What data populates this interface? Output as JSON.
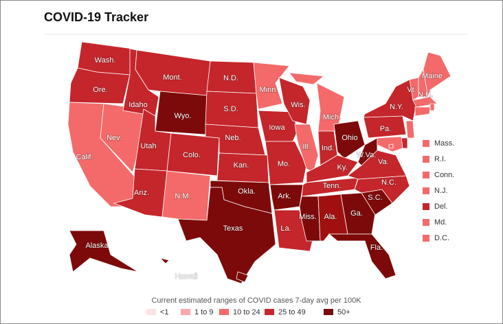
{
  "header": {
    "title": "COVID-19 Tracker"
  },
  "map": {
    "states": [
      {
        "label": "Wash.",
        "color": "#c4262b"
      },
      {
        "label": "Ore.",
        "color": "#c4262b"
      },
      {
        "label": "Calif.",
        "color": "#f46a6a"
      },
      {
        "label": "Nev.",
        "color": "#f46a6a"
      },
      {
        "label": "Idaho",
        "color": "#c4262b"
      },
      {
        "label": "Mont.",
        "color": "#c4262b"
      },
      {
        "label": "Wyo.",
        "color": "#7d0a0a"
      },
      {
        "label": "Utah",
        "color": "#c4262b"
      },
      {
        "label": "Colo.",
        "color": "#c4262b"
      },
      {
        "label": "Ariz.",
        "color": "#c4262b"
      },
      {
        "label": "N.M.",
        "color": "#f46a6a"
      },
      {
        "label": "N.D.",
        "color": "#c4262b"
      },
      {
        "label": "S.D.",
        "color": "#c4262b"
      },
      {
        "label": "Neb.",
        "color": "#c4262b"
      },
      {
        "label": "Kan.",
        "color": "#c4262b"
      },
      {
        "label": "Okla.",
        "color": "#7d0a0a"
      },
      {
        "label": "Texas",
        "color": "#7d0a0a"
      },
      {
        "label": "Minn.",
        "color": "#f46a6a"
      },
      {
        "label": "Iowa",
        "color": "#c4262b"
      },
      {
        "label": "Mo.",
        "color": "#c4262b"
      },
      {
        "label": "Ark.",
        "color": "#7d0a0a"
      },
      {
        "label": "La.",
        "color": "#c4262b"
      },
      {
        "label": "Wis.",
        "color": "#c4262b"
      },
      {
        "label": "Ill.",
        "color": "#f46a6a"
      },
      {
        "label": "Mich.",
        "color": "#f46a6a"
      },
      {
        "label": "Ind.",
        "color": "#c4262b"
      },
      {
        "label": "Ohio",
        "color": "#7d0a0a"
      },
      {
        "label": "Ky.",
        "color": "#c4262b"
      },
      {
        "label": "Tenn.",
        "color": "#c4262b"
      },
      {
        "label": "Miss.",
        "color": "#7d0a0a"
      },
      {
        "label": "Ala.",
        "color": "#a01010"
      },
      {
        "label": "Ga.",
        "color": "#7d0a0a"
      },
      {
        "label": "Fla.",
        "color": "#7d0a0a"
      },
      {
        "label": "S.C.",
        "color": "#7d0a0a"
      },
      {
        "label": "N.C.",
        "color": "#c4262b"
      },
      {
        "label": "Va.",
        "color": "#c4262b"
      },
      {
        "label": "W.Va.",
        "color": "#7d0a0a"
      },
      {
        "label": "Pa.",
        "color": "#c4262b"
      },
      {
        "label": "N.Y.",
        "color": "#c4262b"
      },
      {
        "label": "Vt.",
        "color": "#f46a6a"
      },
      {
        "label": "N.H.",
        "color": "#f46a6a"
      },
      {
        "label": "Maine",
        "color": "#f46a6a"
      },
      {
        "label": "Mass.",
        "color": "#f46a6a"
      },
      {
        "label": "R.I.",
        "color": "#f46a6a"
      },
      {
        "label": "Conn.",
        "color": "#f46a6a"
      },
      {
        "label": "N.J.",
        "color": "#f46a6a"
      },
      {
        "label": "Del.",
        "color": "#c4262b"
      },
      {
        "label": "Md.",
        "color": "#f46a6a"
      },
      {
        "label": "D.C.",
        "color": "#f46a6a"
      },
      {
        "label": "Alaska",
        "color": "#7d0a0a"
      },
      {
        "label": "Hawaii",
        "color": "#7d0a0a"
      }
    ]
  },
  "legend": {
    "title": "Current estimated ranges of COVID cases 7-day avg per 100K",
    "items": [
      {
        "label": "<1",
        "color": "#fde4e4"
      },
      {
        "label": "1 to 9",
        "color": "#f8a9a9"
      },
      {
        "label": "10 to 24",
        "color": "#f46a6a"
      },
      {
        "label": "25 to 49",
        "color": "#c4262b"
      },
      {
        "label": "50+",
        "color": "#7d0a0a"
      }
    ]
  }
}
